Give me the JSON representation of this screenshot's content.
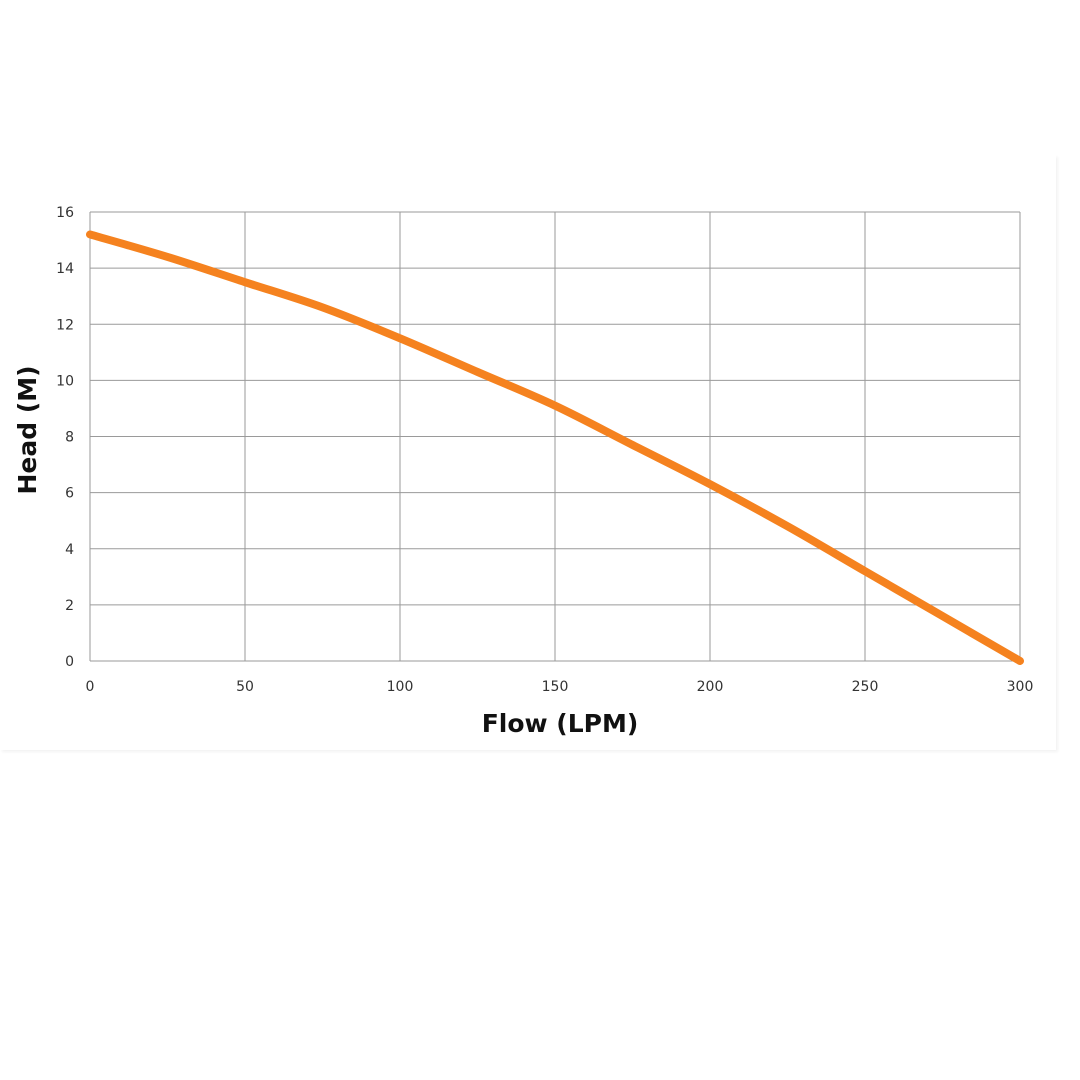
{
  "chart_data": {
    "type": "line",
    "xlabel": "Flow (LPM)",
    "ylabel": "Head (M)",
    "xlim": [
      0,
      300
    ],
    "ylim": [
      0,
      16
    ],
    "x_ticks": [
      0,
      50,
      100,
      150,
      200,
      250,
      300
    ],
    "y_ticks": [
      0,
      2,
      4,
      6,
      8,
      10,
      12,
      14,
      16
    ],
    "grid": true,
    "series": [
      {
        "color": "#F5821F",
        "points": [
          {
            "x": 0,
            "y": 15.2
          },
          {
            "x": 25,
            "y": 14.4
          },
          {
            "x": 50,
            "y": 13.5
          },
          {
            "x": 75,
            "y": 12.6
          },
          {
            "x": 100,
            "y": 11.5
          },
          {
            "x": 125,
            "y": 10.3
          },
          {
            "x": 150,
            "y": 9.1
          },
          {
            "x": 175,
            "y": 7.7
          },
          {
            "x": 200,
            "y": 6.3
          },
          {
            "x": 225,
            "y": 4.8
          },
          {
            "x": 250,
            "y": 3.2
          },
          {
            "x": 275,
            "y": 1.6
          },
          {
            "x": 300,
            "y": 0
          }
        ]
      }
    ]
  },
  "colors": {
    "curve": "#F5821F",
    "grid": "#9a9a9a",
    "background": "#ffffff"
  }
}
